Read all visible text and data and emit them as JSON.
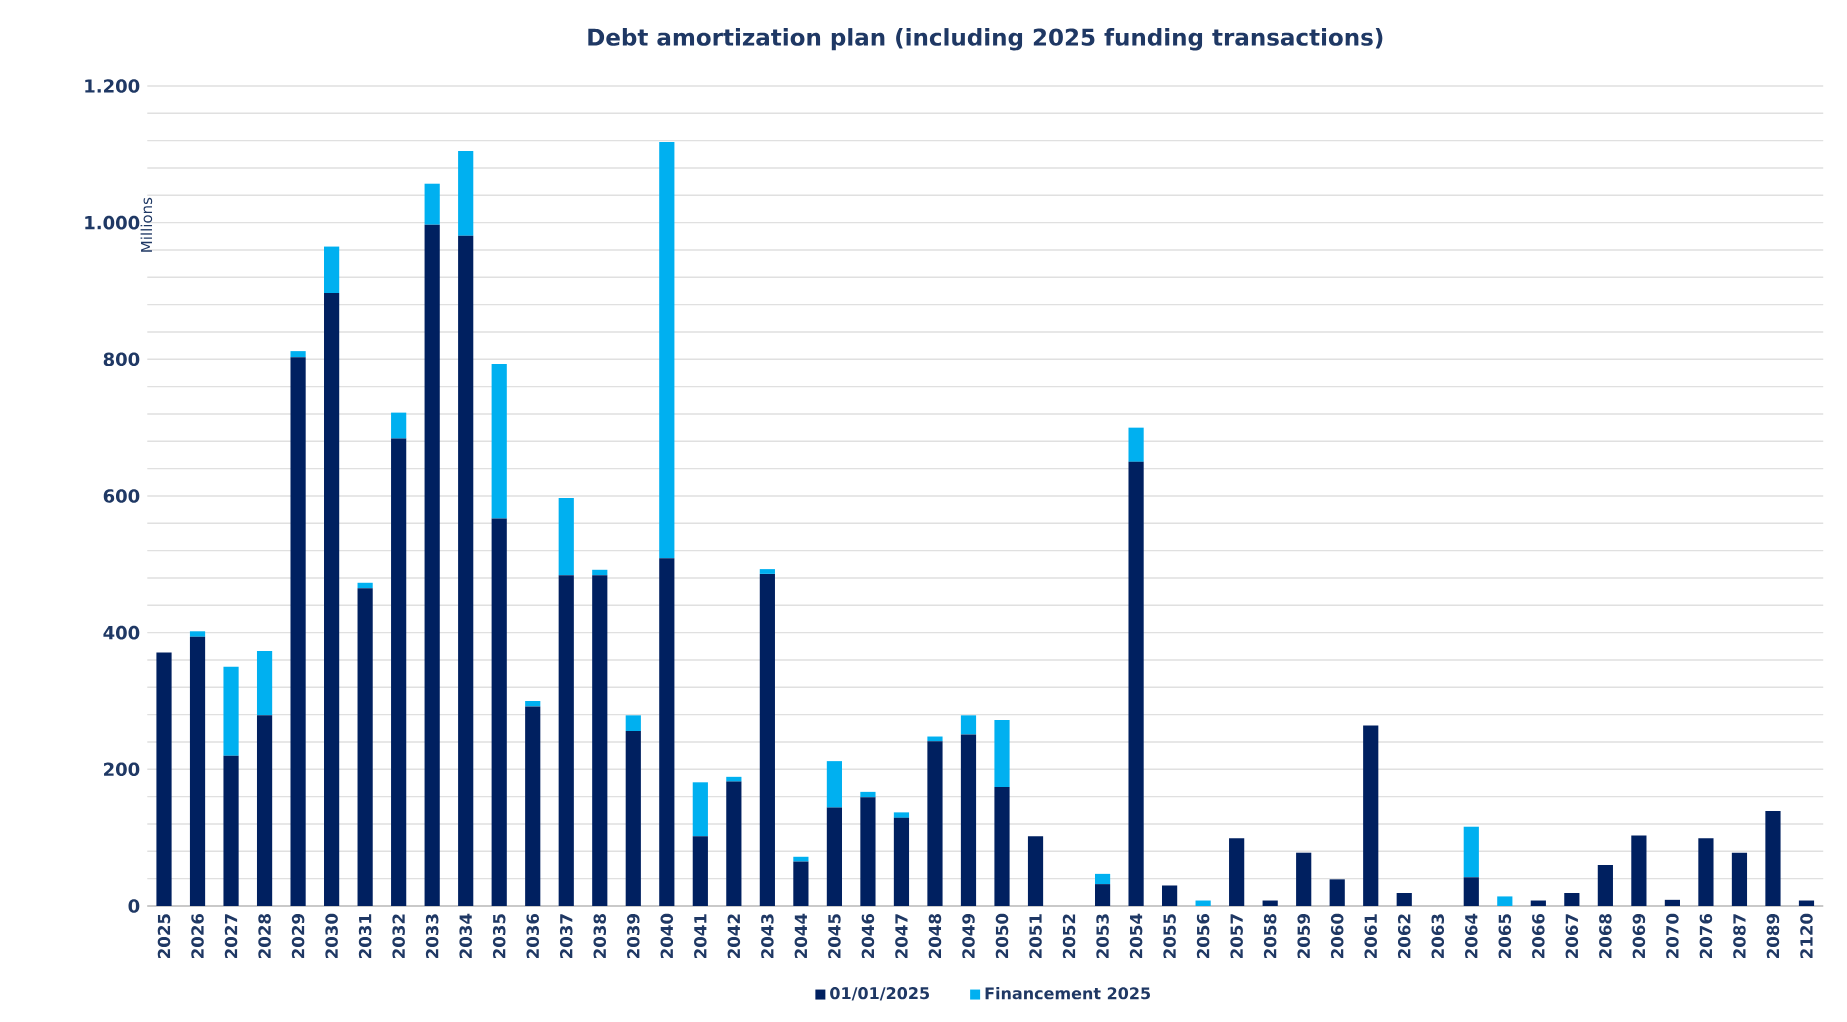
{
  "chart_data": {
    "type": "bar",
    "stacked": true,
    "title": "Debt amortization plan (including 2025 funding transactions)",
    "ylabel": "Millions",
    "categories": [
      "2025",
      "2026",
      "2027",
      "2028",
      "2029",
      "2030",
      "2031",
      "2032",
      "2033",
      "2034",
      "2035",
      "2036",
      "2037",
      "2038",
      "2039",
      "2040",
      "2041",
      "2042",
      "2043",
      "2044",
      "2045",
      "2046",
      "2047",
      "2048",
      "2049",
      "2050",
      "2051",
      "2052",
      "2053",
      "2054",
      "2055",
      "2056",
      "2057",
      "2058",
      "2059",
      "2060",
      "2061",
      "2062",
      "2063",
      "2064",
      "2065",
      "2066",
      "2067",
      "2068",
      "2069",
      "2070",
      "2076",
      "2087",
      "2089",
      "2120"
    ],
    "series": [
      {
        "name": "01/01/2025",
        "color": "#002060",
        "values": [
          371,
          394,
          220,
          279,
          803,
          897,
          465,
          684,
          997,
          981,
          567,
          292,
          484,
          484,
          256,
          509,
          102,
          182,
          486,
          65,
          144,
          159,
          129,
          241,
          251,
          174,
          102,
          0,
          32,
          650,
          30,
          0,
          99,
          8,
          78,
          39,
          264,
          19,
          0,
          42,
          0,
          8,
          19,
          60,
          103,
          9,
          99,
          78,
          139,
          8
        ]
      },
      {
        "name": "Financement 2025",
        "color": "#00b0f0",
        "values": [
          0,
          8,
          130,
          94,
          9,
          68,
          8,
          38,
          60,
          124,
          226,
          8,
          113,
          8,
          23,
          609,
          79,
          7,
          7,
          7,
          68,
          8,
          8,
          7,
          28,
          98,
          0,
          0,
          15,
          50,
          0,
          8,
          0,
          0,
          0,
          0,
          0,
          0,
          0,
          74,
          14,
          0,
          0,
          0,
          0,
          0,
          0,
          0,
          0,
          0
        ]
      }
    ],
    "ylim": [
      0,
      1200
    ],
    "yticks": [
      0,
      {
        "value": 40,
        "label": null
      },
      {
        "value": 80,
        "label": null
      },
      {
        "value": 120,
        "label": null
      },
      {
        "value": 160,
        "label": null
      },
      200,
      {
        "value": 240,
        "label": null
      },
      {
        "value": 280,
        "label": null
      },
      {
        "value": 320,
        "label": null
      },
      {
        "value": 360,
        "label": null
      },
      400,
      {
        "value": 440,
        "label": null
      },
      {
        "value": 480,
        "label": null
      },
      {
        "value": 520,
        "label": null
      },
      {
        "value": 560,
        "label": null
      },
      600,
      {
        "value": 640,
        "label": null
      },
      {
        "value": 680,
        "label": null
      },
      {
        "value": 720,
        "label": null
      },
      {
        "value": 760,
        "label": null
      },
      800,
      {
        "value": 840,
        "label": null
      },
      {
        "value": 880,
        "label": null
      },
      {
        "value": 920,
        "label": null
      },
      {
        "value": 960,
        "label": null
      },
      {
        "value": 1000,
        "label": "1.000"
      },
      {
        "value": 1040,
        "label": null
      },
      {
        "value": 1080,
        "label": null
      },
      {
        "value": 1120,
        "label": null
      },
      {
        "value": 1160,
        "label": null
      },
      {
        "value": 1200,
        "label": "1.200"
      }
    ],
    "grid": "y",
    "legend": "bottom"
  }
}
